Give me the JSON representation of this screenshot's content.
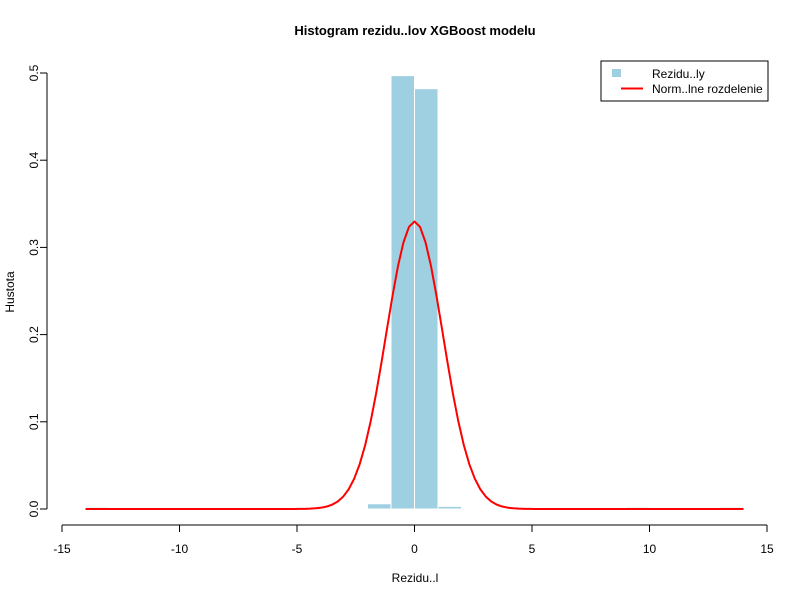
{
  "chart_data": {
    "type": "bar",
    "title": "Histogram rezidu..lov XGBoost modelu",
    "xlabel": "Rezidu..l",
    "ylabel": "Hustota",
    "xlim": [
      -15,
      15
    ],
    "ylim": [
      0,
      0.5
    ],
    "x_ticks": [
      "-15",
      "-10",
      "-5",
      "0",
      "5",
      "10",
      "15"
    ],
    "y_ticks": [
      "0.0",
      "0.1",
      "0.2",
      "0.3",
      "0.4",
      "0.5"
    ],
    "grid": false,
    "legend_position": "top-right",
    "histogram": {
      "name": "Rezidu..ly",
      "color": "#9FD0E2",
      "bins": [
        {
          "x0": -14,
          "x1": -13,
          "density": 0.002
        },
        {
          "x0": -5,
          "x1": -4,
          "density": 0.001
        },
        {
          "x0": -2,
          "x1": -1,
          "density": 0.006
        },
        {
          "x0": -1,
          "x1": 0,
          "density": 0.497
        },
        {
          "x0": 0,
          "x1": 1,
          "density": 0.482
        },
        {
          "x0": 1,
          "x1": 2,
          "density": 0.003
        },
        {
          "x0": 9,
          "x1": 10,
          "density": 0.002
        },
        {
          "x0": 13,
          "x1": 14,
          "density": 0.002
        }
      ]
    },
    "normal_curve": {
      "name": "Norm..lne rozdelenie",
      "color": "#FF0000",
      "mean": 0,
      "sd": 1.21,
      "x_range": [
        -14,
        14
      ]
    }
  }
}
